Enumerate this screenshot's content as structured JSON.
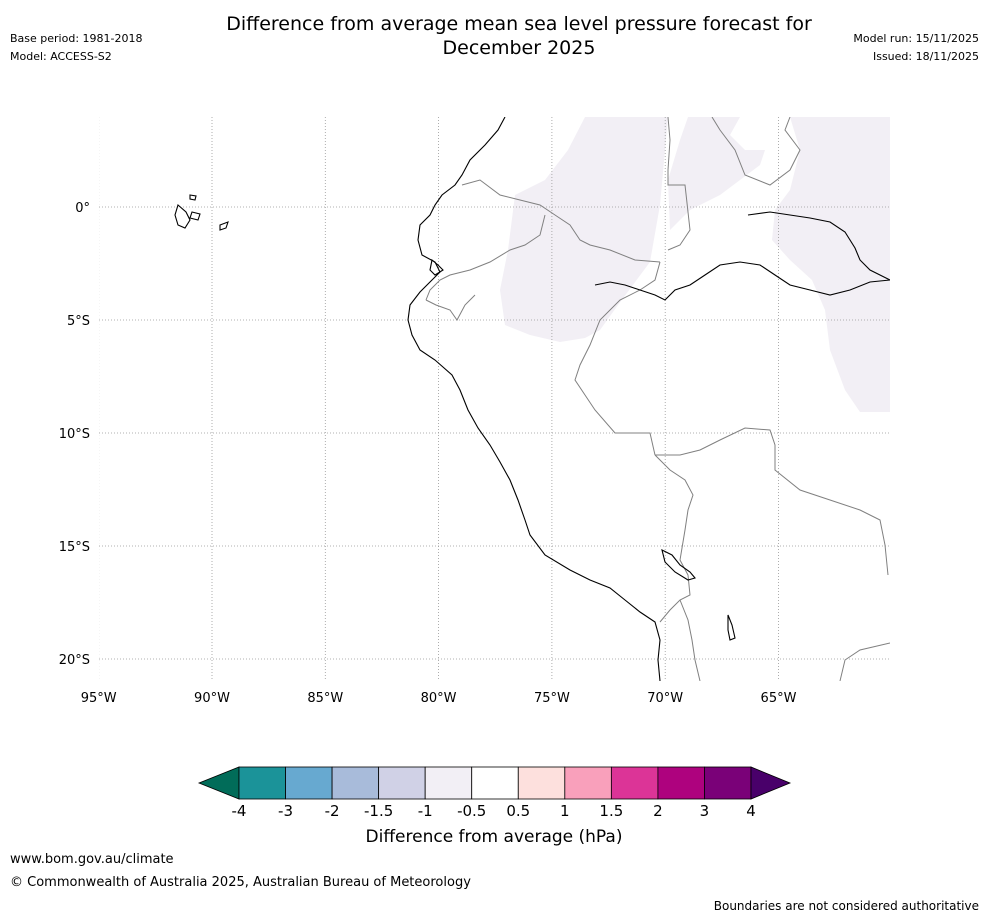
{
  "header": {
    "title_line1": "Difference from average mean sea level pressure forecast for",
    "title_line2": "December 2025",
    "base_period": "Base period: 1981-2018",
    "model": "Model: ACCESS-S2",
    "model_run": "Model run: 15/11/2025",
    "issued": "Issued: 18/11/2025"
  },
  "map": {
    "lat_ticks": [
      {
        "value": 0,
        "label": "0°"
      },
      {
        "value": -5,
        "label": "5°S"
      },
      {
        "value": -10,
        "label": "10°S"
      },
      {
        "value": -15,
        "label": "15°S"
      },
      {
        "value": -20,
        "label": "20°S"
      }
    ],
    "lon_ticks": [
      {
        "value": -95,
        "label": "95°W"
      },
      {
        "value": -90,
        "label": "90°W"
      },
      {
        "value": -85,
        "label": "85°W"
      },
      {
        "value": -80,
        "label": "80°W"
      },
      {
        "value": -75,
        "label": "75°W"
      },
      {
        "value": -70,
        "label": "70°W"
      },
      {
        "value": -65,
        "label": "65°W"
      }
    ],
    "lon_range": [
      -95,
      -60
    ],
    "lat_range": [
      -21,
      4
    ],
    "anomaly_fill_color": "#f2eff5",
    "coast_color": "#000000",
    "border_color": "#808080"
  },
  "colorbar": {
    "title": "Difference from average (hPa)",
    "labels": [
      "-4",
      "-3",
      "-2",
      "-1.5",
      "-1",
      "-0.5",
      "0.5",
      "1",
      "1.5",
      "2",
      "3",
      "4"
    ],
    "colors": [
      "#1b9399",
      "#67a9d0",
      "#a8bbda",
      "#d0d1e6",
      "#f2eff5",
      "#ffffff",
      "#fde0dd",
      "#f9a0bb",
      "#dc3497",
      "#ae027e",
      "#7a0178"
    ],
    "under_color": "#016c59",
    "over_color": "#49006a"
  },
  "footer": {
    "url": "www.bom.gov.au/climate",
    "copyright": "© Commonwealth of Australia 2025, Australian Bureau of Meteorology",
    "note": "Boundaries are not considered authoritative"
  }
}
